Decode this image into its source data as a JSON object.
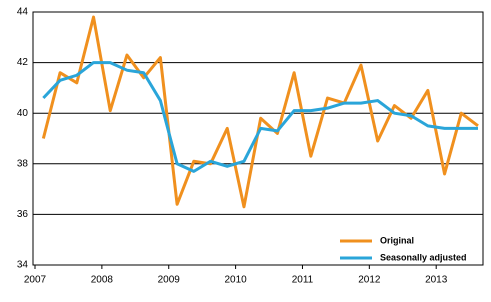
{
  "chart_data": {
    "type": "line",
    "x": [
      2007.125,
      2007.375,
      2007.625,
      2007.875,
      2008.125,
      2008.375,
      2008.625,
      2008.875,
      2009.125,
      2009.375,
      2009.625,
      2009.875,
      2010.125,
      2010.375,
      2010.625,
      2010.875,
      2011.125,
      2011.375,
      2011.625,
      2011.875,
      2012.125,
      2012.375,
      2012.625,
      2012.875,
      2013.125,
      2013.375,
      2013.625
    ],
    "series": [
      {
        "name": "Original",
        "color": "#f0901e",
        "values": [
          39.0,
          41.6,
          41.2,
          43.8,
          40.1,
          42.3,
          41.4,
          42.2,
          36.4,
          38.1,
          38.0,
          39.4,
          36.3,
          39.8,
          39.2,
          41.6,
          38.3,
          40.6,
          40.4,
          41.9,
          38.9,
          40.3,
          39.8,
          40.9,
          37.6,
          40.0,
          39.5
        ]
      },
      {
        "name": "Seasonally adjusted",
        "color": "#2aa5d9",
        "values": [
          40.6,
          41.3,
          41.5,
          42.0,
          42.0,
          41.7,
          41.6,
          40.5,
          38.0,
          37.7,
          38.1,
          37.9,
          38.1,
          39.4,
          39.3,
          40.1,
          40.1,
          40.2,
          40.4,
          40.4,
          40.5,
          40.0,
          39.9,
          39.5,
          39.4,
          39.4,
          39.4
        ]
      }
    ],
    "xlim": [
      2006.97,
      2013.7
    ],
    "xticks": [
      2007,
      2008,
      2009,
      2010,
      2011,
      2012,
      2013
    ],
    "ylim": [
      34,
      44
    ],
    "yticks": [
      34,
      36,
      38,
      40,
      42,
      44
    ],
    "grid": true,
    "legend": "lower right"
  }
}
